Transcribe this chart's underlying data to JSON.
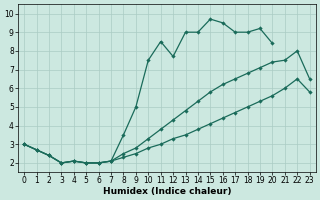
{
  "xlabel": "Humidex (Indice chaleur)",
  "xlim": [
    -0.5,
    23.5
  ],
  "ylim": [
    1.5,
    10.5
  ],
  "xticks": [
    0,
    1,
    2,
    3,
    4,
    5,
    6,
    7,
    8,
    9,
    10,
    11,
    12,
    13,
    14,
    15,
    16,
    17,
    18,
    19,
    20,
    21,
    22,
    23
  ],
  "yticks": [
    2,
    3,
    4,
    5,
    6,
    7,
    8,
    9,
    10
  ],
  "bg_color": "#cce8e0",
  "grid_color": "#aaccC4",
  "line_color": "#1a6b5a",
  "top_curve_x": [
    0,
    1,
    2,
    3,
    4,
    5,
    6,
    7,
    8,
    9,
    10,
    11,
    12,
    13,
    14,
    15,
    16,
    17,
    18,
    19,
    20
  ],
  "top_curve_y": [
    3.0,
    2.7,
    2.4,
    2.0,
    2.1,
    2.0,
    2.0,
    2.1,
    3.5,
    5.0,
    7.5,
    8.5,
    7.7,
    9.0,
    9.0,
    9.7,
    9.5,
    9.0,
    9.0,
    9.2,
    8.4
  ],
  "mid_curve_x": [
    0,
    1,
    2,
    3,
    4,
    5,
    6,
    7,
    8,
    9,
    10,
    11,
    12,
    13,
    14,
    15,
    16,
    17,
    18,
    19,
    20,
    21,
    22,
    23
  ],
  "mid_curve_y": [
    3.0,
    2.7,
    2.4,
    2.0,
    2.1,
    2.0,
    2.0,
    2.1,
    2.5,
    2.8,
    3.3,
    3.8,
    4.3,
    4.8,
    5.3,
    5.8,
    6.2,
    6.5,
    6.8,
    7.1,
    7.4,
    7.5,
    8.0,
    6.5
  ],
  "low_curve_x": [
    0,
    1,
    2,
    3,
    4,
    5,
    6,
    7,
    8,
    9,
    10,
    11,
    12,
    13,
    14,
    15,
    16,
    17,
    18,
    19,
    20,
    21,
    22,
    23
  ],
  "low_curve_y": [
    3.0,
    2.7,
    2.4,
    2.0,
    2.1,
    2.0,
    2.0,
    2.1,
    2.3,
    2.5,
    2.8,
    3.0,
    3.3,
    3.5,
    3.8,
    4.1,
    4.4,
    4.7,
    5.0,
    5.3,
    5.6,
    6.0,
    6.5,
    5.8
  ]
}
